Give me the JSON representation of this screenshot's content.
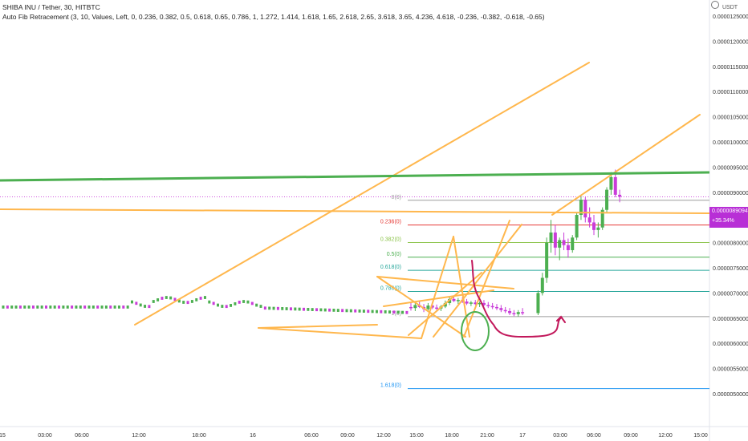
{
  "header": {
    "symbol_line": "SHIBA INU / Tether, 30, HITBTC",
    "indicator_line": "Auto Fib Retracement (3, 10, Values, Left, 0, 0.236, 0.382, 0.5, 0.618, 0.65, 0.786, 1, 1.272, 1.414, 1.618, 1.65, 2.618, 2.65, 3.618, 3.65, 4.236, 4.618, -0.236, -0.382, -0.618, -0.65)"
  },
  "price_scale": {
    "currency": "USDT",
    "current_price": "0.0000089094",
    "current_change": "+35.34%"
  },
  "colors": {
    "up": "#4caf50",
    "down": "#c93cd9",
    "drawing_orange": "#ffb74d",
    "drawing_green": "#4caf50",
    "drawing_red": "#c2185b",
    "badge": "#b82fd6"
  },
  "chart_data": {
    "type": "candlestick",
    "y_axis": {
      "ticks": [
        "0.0000125000",
        "0.0000120000",
        "0.0000115000",
        "0.0000110000",
        "0.0000105000",
        "0.0000100000",
        "0.0000095000",
        "0.0000090000",
        "0.0000085000",
        "0.0000080000",
        "0.0000075000",
        "0.0000070000",
        "0.0000065000",
        "0.0000060000",
        "0.0000055000",
        "0.0000050000"
      ],
      "range": [
        4.9e-06,
        1.29e-05
      ]
    },
    "x_axis": {
      "ticks": [
        "15",
        "03:00",
        "06:00",
        "12:00",
        "18:00",
        "16",
        "06:00",
        "09:00",
        "12:00",
        "15:00",
        "18:00",
        "21:00",
        "17",
        "03:00",
        "06:00",
        "09:00",
        "12:00",
        "15:00"
      ]
    },
    "fib_levels": [
      {
        "label": "0(0)",
        "price": 8.84e-06,
        "color": "#9e9e9e"
      },
      {
        "label": "0.236(0)",
        "price": 8.35e-06,
        "color": "#e53935"
      },
      {
        "label": "0.382(0)",
        "price": 8e-06,
        "color": "#8bc34a"
      },
      {
        "label": "0.5(0)",
        "price": 7.71e-06,
        "color": "#4caf50"
      },
      {
        "label": "0.618(0)",
        "price": 7.45e-06,
        "color": "#26a69a"
      },
      {
        "label": "0.786(0)",
        "price": 7.03e-06,
        "color": "#26a69a"
      },
      {
        "label": "1(0)",
        "price": 6.53e-06,
        "color": "#9e9e9e"
      },
      {
        "label": "1.618(0)",
        "price": 5.1e-06,
        "color": "#2196f3"
      }
    ],
    "candles": [
      {
        "o": 6.72,
        "h": 6.8,
        "l": 6.65,
        "c": 6.7
      },
      {
        "o": 6.7,
        "h": 6.82,
        "l": 6.64,
        "c": 6.76
      },
      {
        "o": 6.76,
        "h": 6.84,
        "l": 6.7,
        "c": 6.72
      },
      {
        "o": 6.72,
        "h": 6.78,
        "l": 6.62,
        "c": 6.68
      },
      {
        "o": 6.68,
        "h": 6.8,
        "l": 6.63,
        "c": 6.75
      },
      {
        "o": 6.75,
        "h": 6.82,
        "l": 6.68,
        "c": 6.71
      },
      {
        "o": 6.71,
        "h": 6.77,
        "l": 6.65,
        "c": 6.69
      },
      {
        "o": 6.69,
        "h": 6.76,
        "l": 6.64,
        "c": 6.73
      },
      {
        "o": 6.73,
        "h": 6.85,
        "l": 6.7,
        "c": 6.8
      },
      {
        "o": 6.8,
        "h": 6.92,
        "l": 6.76,
        "c": 6.88
      },
      {
        "o": 6.88,
        "h": 6.95,
        "l": 6.82,
        "c": 6.84
      },
      {
        "o": 6.84,
        "h": 6.9,
        "l": 6.78,
        "c": 6.86
      },
      {
        "o": 6.86,
        "h": 6.92,
        "l": 6.8,
        "c": 6.83
      },
      {
        "o": 6.83,
        "h": 6.88,
        "l": 6.76,
        "c": 6.79
      },
      {
        "o": 6.79,
        "h": 6.84,
        "l": 6.74,
        "c": 6.81
      },
      {
        "o": 6.81,
        "h": 6.86,
        "l": 6.76,
        "c": 6.78
      },
      {
        "o": 6.78,
        "h": 6.83,
        "l": 6.72,
        "c": 6.8
      },
      {
        "o": 6.8,
        "h": 6.86,
        "l": 6.74,
        "c": 6.76
      },
      {
        "o": 6.76,
        "h": 6.82,
        "l": 6.7,
        "c": 6.74
      },
      {
        "o": 6.74,
        "h": 6.8,
        "l": 6.68,
        "c": 6.72
      },
      {
        "o": 6.72,
        "h": 6.78,
        "l": 6.66,
        "c": 6.7
      },
      {
        "o": 6.7,
        "h": 6.76,
        "l": 6.62,
        "c": 6.66
      },
      {
        "o": 6.66,
        "h": 6.72,
        "l": 6.6,
        "c": 6.64
      },
      {
        "o": 6.64,
        "h": 6.7,
        "l": 6.56,
        "c": 6.6
      },
      {
        "o": 6.6,
        "h": 6.66,
        "l": 6.54,
        "c": 6.58
      },
      {
        "o": 6.58,
        "h": 6.66,
        "l": 6.53,
        "c": 6.62
      },
      {
        "o": 6.62,
        "h": 6.7,
        "l": 6.56,
        "c": 6.6
      },
      {
        "o": 6.6,
        "h": 7.05,
        "l": 6.56,
        "c": 7.0
      },
      {
        "o": 7.0,
        "h": 7.4,
        "l": 6.95,
        "c": 7.3
      },
      {
        "o": 7.3,
        "h": 8.1,
        "l": 7.2,
        "c": 8.0
      },
      {
        "o": 8.0,
        "h": 8.45,
        "l": 7.8,
        "c": 8.2
      },
      {
        "o": 8.2,
        "h": 8.35,
        "l": 7.75,
        "c": 7.9
      },
      {
        "o": 7.9,
        "h": 8.1,
        "l": 7.65,
        "c": 8.05
      },
      {
        "o": 8.05,
        "h": 8.2,
        "l": 7.85,
        "c": 7.95
      },
      {
        "o": 7.95,
        "h": 8.08,
        "l": 7.7,
        "c": 7.85
      },
      {
        "o": 7.85,
        "h": 8.15,
        "l": 7.8,
        "c": 8.1
      },
      {
        "o": 8.1,
        "h": 8.6,
        "l": 8.05,
        "c": 8.55
      },
      {
        "o": 8.55,
        "h": 8.95,
        "l": 8.45,
        "c": 8.85
      },
      {
        "o": 8.85,
        "h": 8.9,
        "l": 8.4,
        "c": 8.5
      },
      {
        "o": 8.5,
        "h": 8.7,
        "l": 8.3,
        "c": 8.4
      },
      {
        "o": 8.4,
        "h": 8.55,
        "l": 8.15,
        "c": 8.25
      },
      {
        "o": 8.25,
        "h": 8.4,
        "l": 8.1,
        "c": 8.3
      },
      {
        "o": 8.3,
        "h": 8.7,
        "l": 8.25,
        "c": 8.65
      },
      {
        "o": 8.65,
        "h": 9.1,
        "l": 8.6,
        "c": 9.05
      },
      {
        "o": 9.05,
        "h": 9.4,
        "l": 8.95,
        "c": 9.3
      },
      {
        "o": 9.3,
        "h": 9.45,
        "l": 8.9,
        "c": 8.95
      },
      {
        "o": 8.95,
        "h": 9.05,
        "l": 8.8,
        "c": 8.91
      }
    ],
    "candle_price_unit": "1e-6 USDT"
  }
}
